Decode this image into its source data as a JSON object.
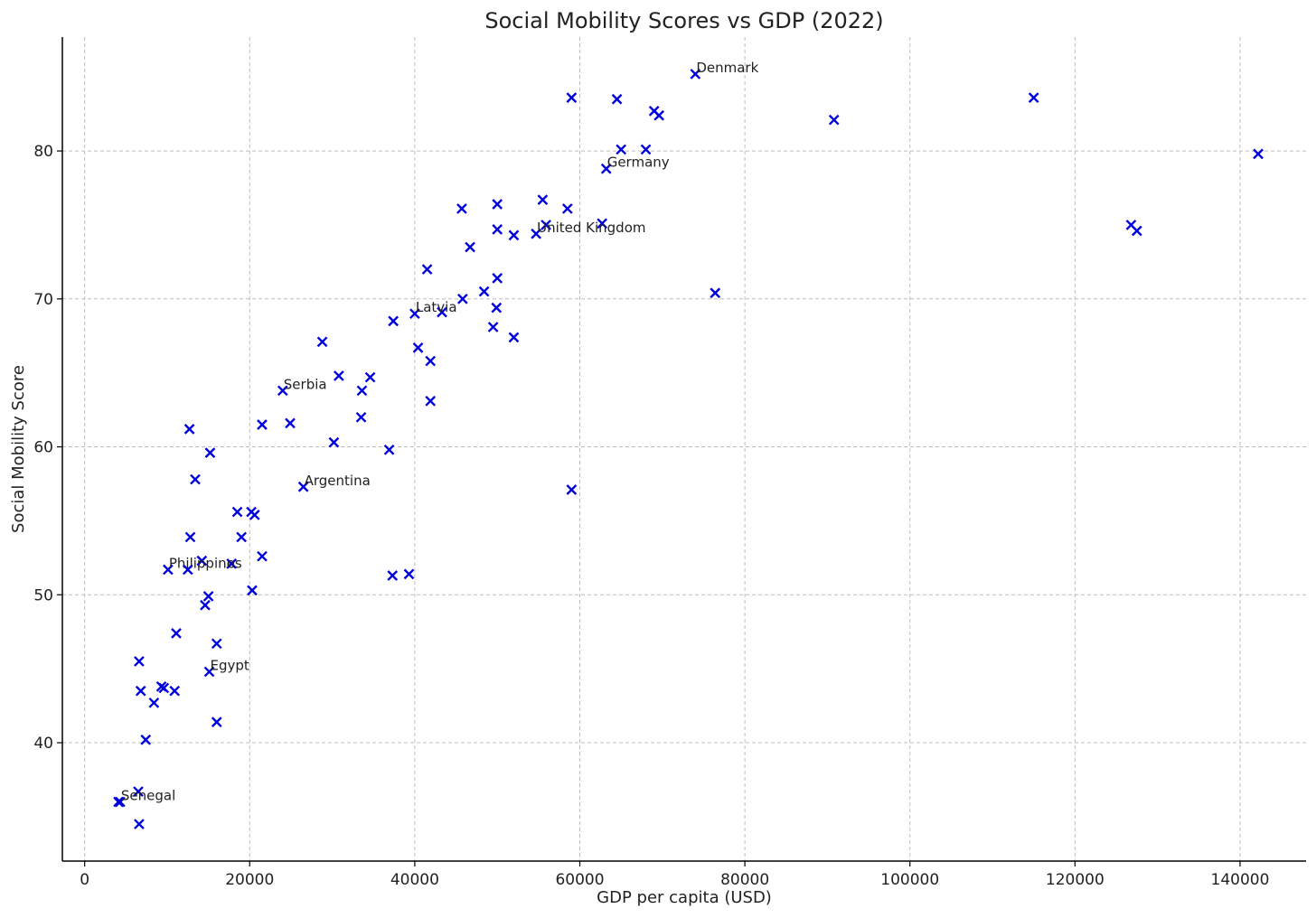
{
  "chart_data": {
    "type": "scatter",
    "title": "Social Mobility Scores vs GDP (2022)",
    "xlabel": "GDP per capita (USD)",
    "ylabel": "Social Mobility Score",
    "xlim": [
      -2700,
      148000
    ],
    "ylim": [
      32.0,
      87.7
    ],
    "xticks": [
      0,
      20000,
      40000,
      60000,
      80000,
      100000,
      120000,
      140000
    ],
    "yticks": [
      40,
      50,
      60,
      70,
      80
    ],
    "grid": true,
    "marker": "x",
    "marker_color": "#0000dd",
    "points": [
      {
        "x": 74000,
        "y": 85.2,
        "label": "Denmark"
      },
      {
        "x": 59000,
        "y": 83.6
      },
      {
        "x": 64500,
        "y": 83.5
      },
      {
        "x": 69000,
        "y": 82.7
      },
      {
        "x": 69600,
        "y": 82.4
      },
      {
        "x": 90800,
        "y": 82.1
      },
      {
        "x": 115000,
        "y": 83.6
      },
      {
        "x": 142200,
        "y": 79.8
      },
      {
        "x": 65000,
        "y": 80.1
      },
      {
        "x": 68000,
        "y": 80.1
      },
      {
        "x": 63200,
        "y": 78.8,
        "label": "Germany"
      },
      {
        "x": 55500,
        "y": 76.7
      },
      {
        "x": 50000,
        "y": 76.4
      },
      {
        "x": 45700,
        "y": 76.1
      },
      {
        "x": 58500,
        "y": 76.1
      },
      {
        "x": 62700,
        "y": 75.1
      },
      {
        "x": 55900,
        "y": 75.0
      },
      {
        "x": 50000,
        "y": 74.7
      },
      {
        "x": 54700,
        "y": 74.4,
        "label": "United Kingdom"
      },
      {
        "x": 52000,
        "y": 74.3
      },
      {
        "x": 126800,
        "y": 75.0
      },
      {
        "x": 127500,
        "y": 74.6
      },
      {
        "x": 46700,
        "y": 73.5
      },
      {
        "x": 41500,
        "y": 72.0
      },
      {
        "x": 50000,
        "y": 71.4
      },
      {
        "x": 76400,
        "y": 70.4
      },
      {
        "x": 48400,
        "y": 70.5
      },
      {
        "x": 45800,
        "y": 70.0
      },
      {
        "x": 43300,
        "y": 69.1
      },
      {
        "x": 49900,
        "y": 69.4
      },
      {
        "x": 40000,
        "y": 69.0,
        "label": "Latvia"
      },
      {
        "x": 37400,
        "y": 68.5
      },
      {
        "x": 49500,
        "y": 68.1
      },
      {
        "x": 52000,
        "y": 67.4
      },
      {
        "x": 28800,
        "y": 67.1
      },
      {
        "x": 40400,
        "y": 66.7
      },
      {
        "x": 41900,
        "y": 65.8
      },
      {
        "x": 30800,
        "y": 64.8
      },
      {
        "x": 34600,
        "y": 64.7
      },
      {
        "x": 24000,
        "y": 63.8,
        "label": "Serbia"
      },
      {
        "x": 33600,
        "y": 63.8
      },
      {
        "x": 41900,
        "y": 63.1
      },
      {
        "x": 33500,
        "y": 62.0
      },
      {
        "x": 21500,
        "y": 61.5
      },
      {
        "x": 24900,
        "y": 61.6
      },
      {
        "x": 12700,
        "y": 61.2
      },
      {
        "x": 30200,
        "y": 60.3
      },
      {
        "x": 36900,
        "y": 59.8
      },
      {
        "x": 15200,
        "y": 59.6
      },
      {
        "x": 13400,
        "y": 57.8
      },
      {
        "x": 26500,
        "y": 57.3,
        "label": "Argentina"
      },
      {
        "x": 59000,
        "y": 57.1
      },
      {
        "x": 18500,
        "y": 55.6
      },
      {
        "x": 20200,
        "y": 55.6
      },
      {
        "x": 20600,
        "y": 55.4
      },
      {
        "x": 12800,
        "y": 53.9
      },
      {
        "x": 19000,
        "y": 53.9
      },
      {
        "x": 21500,
        "y": 52.6
      },
      {
        "x": 14200,
        "y": 52.3
      },
      {
        "x": 17800,
        "y": 52.1
      },
      {
        "x": 10100,
        "y": 51.7,
        "label": "Philippines"
      },
      {
        "x": 12500,
        "y": 51.7
      },
      {
        "x": 37300,
        "y": 51.3
      },
      {
        "x": 39300,
        "y": 51.4
      },
      {
        "x": 20300,
        "y": 50.3
      },
      {
        "x": 15000,
        "y": 49.9
      },
      {
        "x": 14600,
        "y": 49.3
      },
      {
        "x": 11100,
        "y": 47.4
      },
      {
        "x": 16000,
        "y": 46.7
      },
      {
        "x": 6600,
        "y": 45.5
      },
      {
        "x": 15100,
        "y": 44.8,
        "label": "Egypt"
      },
      {
        "x": 9300,
        "y": 43.8
      },
      {
        "x": 9600,
        "y": 43.7
      },
      {
        "x": 6800,
        "y": 43.5
      },
      {
        "x": 10900,
        "y": 43.5
      },
      {
        "x": 8400,
        "y": 42.7
      },
      {
        "x": 16000,
        "y": 41.4
      },
      {
        "x": 7400,
        "y": 40.2
      },
      {
        "x": 6500,
        "y": 36.7
      },
      {
        "x": 4300,
        "y": 36.0,
        "label": "Senegal"
      },
      {
        "x": 4100,
        "y": 36.0
      },
      {
        "x": 6600,
        "y": 34.5
      }
    ]
  }
}
